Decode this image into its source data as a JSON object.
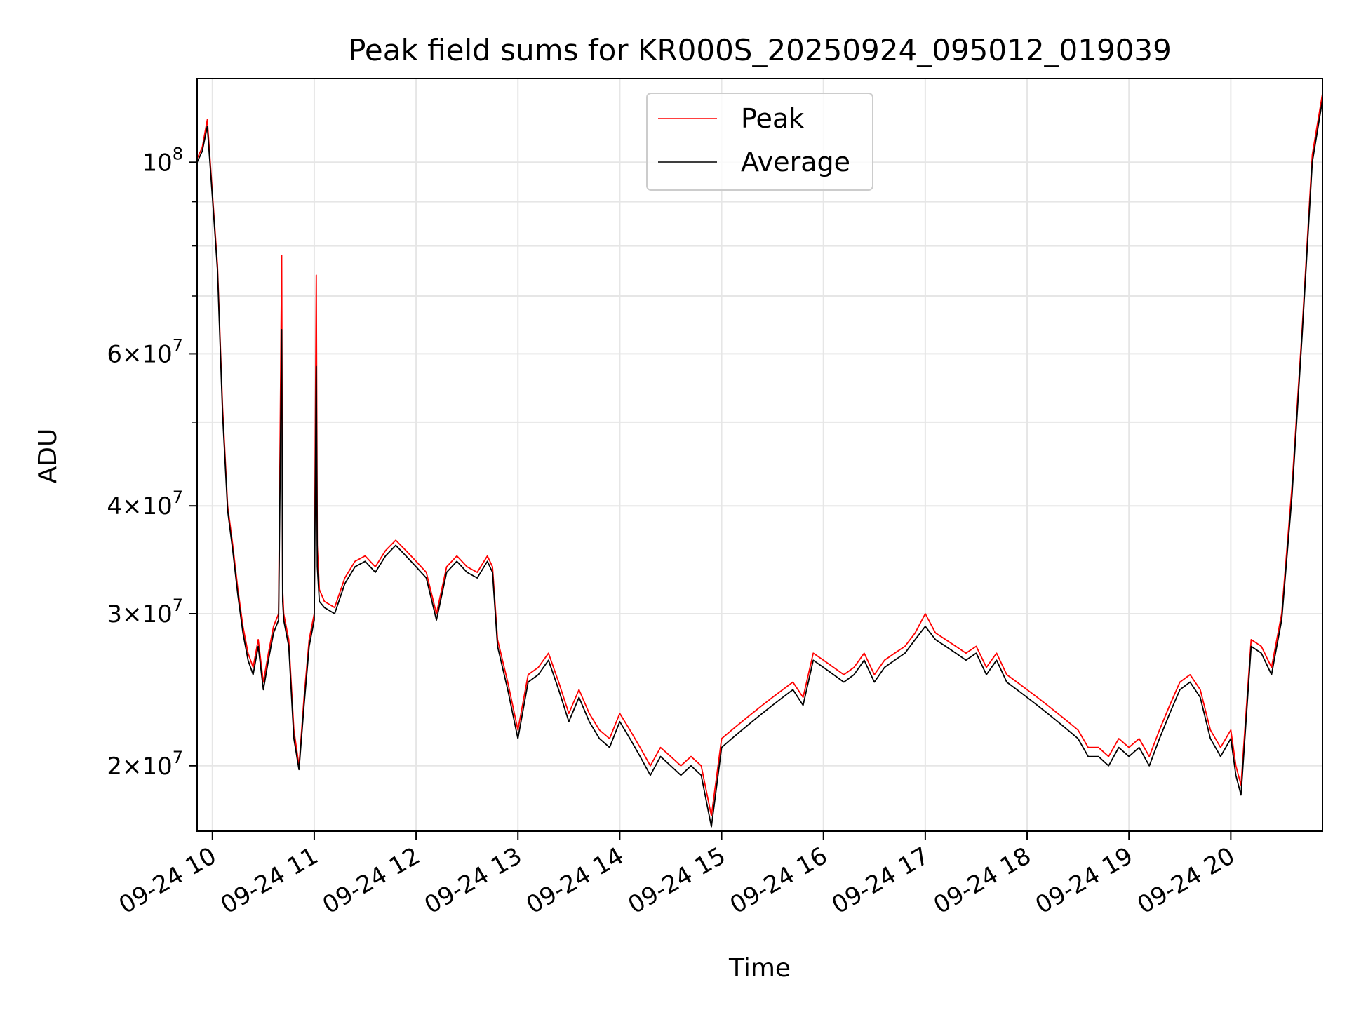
{
  "chart_data": {
    "type": "line",
    "title": "Peak field sums for KR000S_20250924_095012_019039",
    "xlabel": "Time",
    "ylabel": "ADU",
    "x_type": "time",
    "x_unit": "hour of 2025-09-24",
    "xlim": [
      9.85,
      20.9
    ],
    "ylim": [
      16800000,
      125000000
    ],
    "y_scale": "log",
    "grid": true,
    "legend_position": "upper center",
    "x_ticks": [
      {
        "value": 10,
        "label": "09-24 10"
      },
      {
        "value": 11,
        "label": "09-24 11"
      },
      {
        "value": 12,
        "label": "09-24 12"
      },
      {
        "value": 13,
        "label": "09-24 13"
      },
      {
        "value": 14,
        "label": "09-24 14"
      },
      {
        "value": 15,
        "label": "09-24 15"
      },
      {
        "value": 16,
        "label": "09-24 16"
      },
      {
        "value": 17,
        "label": "09-24 17"
      },
      {
        "value": 18,
        "label": "09-24 18"
      },
      {
        "value": 19,
        "label": "09-24 19"
      },
      {
        "value": 20,
        "label": "09-24 20"
      }
    ],
    "y_ticks": [
      {
        "value": 20000000,
        "base": "2",
        "exp": "7"
      },
      {
        "value": 30000000,
        "base": "3",
        "exp": "7"
      },
      {
        "value": 40000000,
        "base": "4",
        "exp": "7"
      },
      {
        "value": 60000000,
        "base": "6",
        "exp": "7"
      },
      {
        "value": 100000000,
        "base": "",
        "exp": "8"
      }
    ],
    "y_minor_ticks": [
      50000000,
      70000000,
      80000000,
      90000000
    ],
    "series": [
      {
        "name": "Peak",
        "color": "#ff0000",
        "x": [
          9.85,
          9.9,
          9.95,
          10.0,
          10.05,
          10.1,
          10.15,
          10.2,
          10.25,
          10.3,
          10.35,
          10.4,
          10.45,
          10.5,
          10.55,
          10.6,
          10.65,
          10.68,
          10.69,
          10.7,
          10.75,
          10.8,
          10.85,
          10.9,
          10.95,
          11.0,
          11.02,
          11.03,
          11.05,
          11.1,
          11.2,
          11.3,
          11.4,
          11.5,
          11.6,
          11.7,
          11.8,
          11.9,
          12.0,
          12.1,
          12.2,
          12.3,
          12.4,
          12.5,
          12.6,
          12.7,
          12.75,
          12.8,
          12.9,
          13.0,
          13.1,
          13.2,
          13.3,
          13.4,
          13.5,
          13.6,
          13.7,
          13.8,
          13.9,
          14.0,
          14.1,
          14.2,
          14.3,
          14.4,
          14.5,
          14.6,
          14.7,
          14.8,
          14.9,
          15.0,
          15.1,
          15.2,
          15.3,
          15.4,
          15.5,
          15.6,
          15.7,
          15.8,
          15.9,
          16.0,
          16.1,
          16.2,
          16.3,
          16.4,
          16.5,
          16.6,
          16.7,
          16.8,
          16.9,
          17.0,
          17.1,
          17.2,
          17.3,
          17.4,
          17.5,
          17.6,
          17.7,
          17.8,
          17.9,
          18.0,
          18.1,
          18.2,
          18.3,
          18.4,
          18.5,
          18.6,
          18.7,
          18.8,
          18.9,
          19.0,
          19.1,
          19.2,
          19.3,
          19.4,
          19.5,
          19.6,
          19.7,
          19.8,
          19.9,
          20.0,
          20.05,
          20.1,
          20.2,
          20.3,
          20.4,
          20.5,
          20.6,
          20.7,
          20.8,
          20.9
        ],
        "values": [
          101000000,
          104000000,
          112000000,
          92000000,
          76000000,
          52000000,
          40000000,
          36000000,
          32000000,
          29000000,
          27000000,
          26000000,
          28000000,
          25000000,
          27000000,
          29000000,
          30000000,
          78000000,
          32000000,
          30000000,
          28000000,
          22000000,
          20000000,
          24000000,
          28000000,
          30000000,
          74000000,
          36000000,
          32000000,
          31000000,
          30500000,
          33000000,
          34500000,
          35000000,
          34000000,
          35500000,
          36500000,
          35500000,
          34500000,
          33500000,
          30000000,
          34000000,
          35000000,
          34000000,
          33500000,
          35000000,
          34000000,
          28000000,
          25000000,
          22000000,
          25500000,
          26000000,
          27000000,
          25000000,
          23000000,
          24500000,
          23000000,
          22000000,
          21500000,
          23000000,
          22000000,
          21000000,
          20000000,
          21000000,
          20500000,
          20000000,
          20500000,
          20000000,
          17500000,
          21500000,
          22000000,
          22500000,
          23000000,
          23500000,
          24000000,
          24500000,
          25000000,
          24000000,
          27000000,
          26500000,
          26000000,
          25500000,
          26000000,
          27000000,
          25500000,
          26500000,
          27000000,
          27500000,
          28500000,
          30000000,
          28500000,
          28000000,
          27500000,
          27000000,
          27500000,
          26000000,
          27000000,
          25500000,
          25000000,
          24500000,
          24000000,
          23500000,
          23000000,
          22500000,
          22000000,
          21000000,
          21000000,
          20500000,
          21500000,
          21000000,
          21500000,
          20500000,
          22000000,
          23500000,
          25000000,
          25500000,
          24500000,
          22000000,
          21000000,
          22000000,
          20000000,
          19000000,
          28000000,
          27500000,
          26000000,
          30000000,
          42000000,
          64000000,
          102000000,
          120000000
        ]
      },
      {
        "name": "Average",
        "color": "#000000",
        "x": [
          9.85,
          9.9,
          9.95,
          10.0,
          10.05,
          10.1,
          10.15,
          10.2,
          10.25,
          10.3,
          10.35,
          10.4,
          10.45,
          10.5,
          10.55,
          10.6,
          10.65,
          10.68,
          10.69,
          10.7,
          10.75,
          10.8,
          10.85,
          10.9,
          10.95,
          11.0,
          11.02,
          11.03,
          11.05,
          11.1,
          11.2,
          11.3,
          11.4,
          11.5,
          11.6,
          11.7,
          11.8,
          11.9,
          12.0,
          12.1,
          12.2,
          12.3,
          12.4,
          12.5,
          12.6,
          12.7,
          12.75,
          12.8,
          12.9,
          13.0,
          13.1,
          13.2,
          13.3,
          13.4,
          13.5,
          13.6,
          13.7,
          13.8,
          13.9,
          14.0,
          14.1,
          14.2,
          14.3,
          14.4,
          14.5,
          14.6,
          14.7,
          14.8,
          14.9,
          15.0,
          15.1,
          15.2,
          15.3,
          15.4,
          15.5,
          15.6,
          15.7,
          15.8,
          15.9,
          16.0,
          16.1,
          16.2,
          16.3,
          16.4,
          16.5,
          16.6,
          16.7,
          16.8,
          16.9,
          17.0,
          17.1,
          17.2,
          17.3,
          17.4,
          17.5,
          17.6,
          17.7,
          17.8,
          17.9,
          18.0,
          18.1,
          18.2,
          18.3,
          18.4,
          18.5,
          18.6,
          18.7,
          18.8,
          18.9,
          19.0,
          19.1,
          19.2,
          19.3,
          19.4,
          19.5,
          19.6,
          19.7,
          19.8,
          19.9,
          20.0,
          20.05,
          20.1,
          20.2,
          20.3,
          20.4,
          20.5,
          20.6,
          20.7,
          20.8,
          20.9
        ],
        "values": [
          100000000,
          103000000,
          110000000,
          91000000,
          75000000,
          51000000,
          39500000,
          35500000,
          31500000,
          28500000,
          26500000,
          25500000,
          27500000,
          24500000,
          26500000,
          28500000,
          29500000,
          64000000,
          31000000,
          29500000,
          27500000,
          21500000,
          19800000,
          23500000,
          27500000,
          29500000,
          58000000,
          34000000,
          31000000,
          30500000,
          30000000,
          32500000,
          34000000,
          34500000,
          33500000,
          35000000,
          36000000,
          35000000,
          34000000,
          33000000,
          29500000,
          33500000,
          34500000,
          33500000,
          33000000,
          34500000,
          33500000,
          27500000,
          24500000,
          21500000,
          25000000,
          25500000,
          26500000,
          24500000,
          22500000,
          24000000,
          22500000,
          21500000,
          21000000,
          22500000,
          21500000,
          20500000,
          19500000,
          20500000,
          20000000,
          19500000,
          20000000,
          19500000,
          17000000,
          21000000,
          21500000,
          22000000,
          22500000,
          23000000,
          23500000,
          24000000,
          24500000,
          23500000,
          26500000,
          26000000,
          25500000,
          25000000,
          25500000,
          26500000,
          25000000,
          26000000,
          26500000,
          27000000,
          28000000,
          29000000,
          28000000,
          27500000,
          27000000,
          26500000,
          27000000,
          25500000,
          26500000,
          25000000,
          24500000,
          24000000,
          23500000,
          23000000,
          22500000,
          22000000,
          21500000,
          20500000,
          20500000,
          20000000,
          21000000,
          20500000,
          21000000,
          20000000,
          21500000,
          23000000,
          24500000,
          25000000,
          24000000,
          21500000,
          20500000,
          21500000,
          19500000,
          18500000,
          27500000,
          27000000,
          25500000,
          29500000,
          41000000,
          63000000,
          100000000,
          118000000
        ]
      }
    ]
  }
}
